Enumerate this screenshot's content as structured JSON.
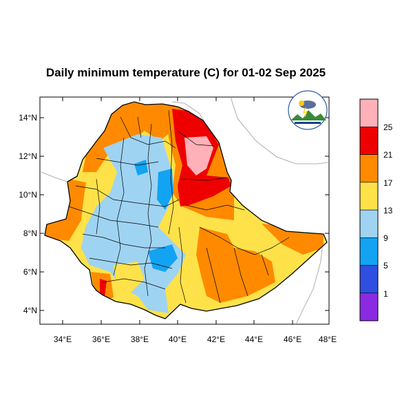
{
  "title": "Daily minimum temperature (C) for 01-02 Sep 2025",
  "map": {
    "lat_ticks": [
      "14°N",
      "12°N",
      "10°N",
      "8°N",
      "6°N",
      "4°N"
    ],
    "lon_ticks": [
      "34°E",
      "36°E",
      "38°E",
      "40°E",
      "42°E",
      "44°E",
      "46°E",
      "48°E"
    ]
  },
  "legend": {
    "colors": [
      "#8a2be2",
      "#2f4fe0",
      "#12a3f2",
      "#9fd3f2",
      "#ffe24a",
      "#ff8a00",
      "#ee0000",
      "#ffb0b8"
    ],
    "labels": [
      "1",
      "5",
      "9",
      "13",
      "17",
      "21",
      "25"
    ]
  },
  "logo": {
    "icon": "weather-agency-logo"
  }
}
